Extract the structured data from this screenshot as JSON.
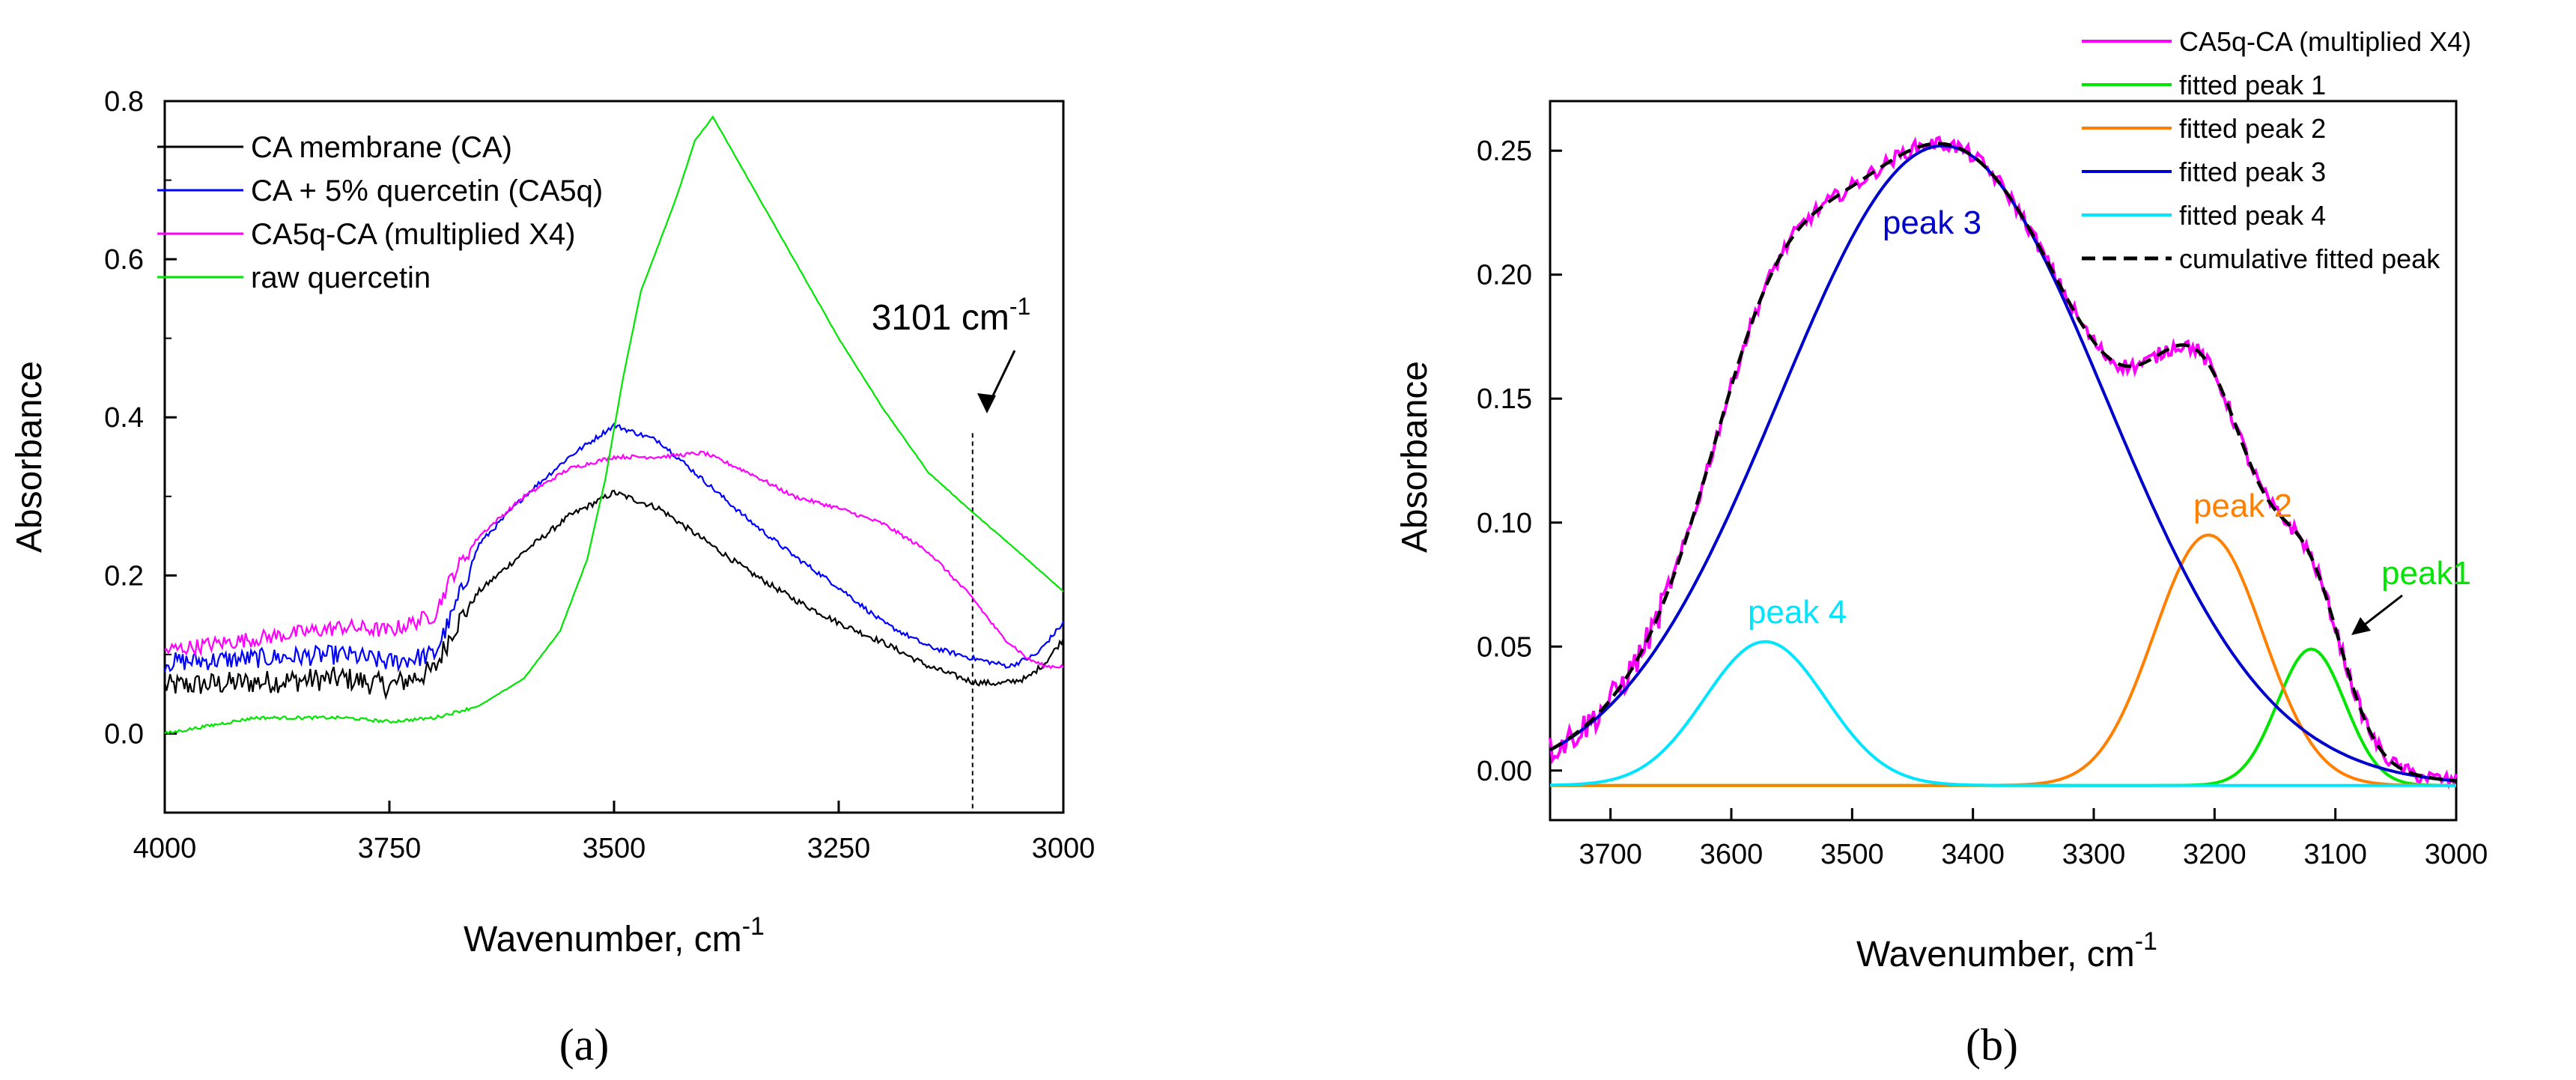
{
  "colors": {
    "black": "#000000",
    "blue": "#0000ff",
    "magenta": "#ff00ff",
    "green": "#00e600",
    "orange": "#ff8000",
    "navy": "#0000cc",
    "cyan": "#00e5ff"
  },
  "chart_data": [
    {
      "panel": "a",
      "caption": "(a)",
      "type": "line",
      "xlabel": "Wavenumber, cm",
      "xlabel_sup": "-1",
      "ylabel": "Absorbance",
      "xlim": [
        4000,
        3000
      ],
      "ylim": [
        -0.1,
        0.8
      ],
      "xticks": [
        4000,
        3750,
        3500,
        3250,
        3000
      ],
      "xtick_labels": [
        "4000",
        "3750",
        "3500",
        "3250",
        "3000"
      ],
      "yticks": [
        0.0,
        0.2,
        0.4,
        0.6,
        0.8
      ],
      "ytick_labels": [
        "0.0",
        "0.2",
        "0.4",
        "0.6",
        "0.8"
      ],
      "annotation": {
        "text": "3101 cm",
        "sup": "-1",
        "x": 3101
      },
      "legend": [
        "CA membrane (CA)",
        "CA + 5% quercetin (CA5q)",
        "CA5q-CA  (multiplied X4)",
        "raw quercetin"
      ],
      "series": [
        {
          "name": "CA membrane (CA)",
          "color": "#000000",
          "x": [
            4000,
            3900,
            3800,
            3750,
            3700,
            3680,
            3650,
            3600,
            3550,
            3500,
            3450,
            3400,
            3350,
            3300,
            3250,
            3200,
            3150,
            3100,
            3070,
            3040,
            3020,
            3000
          ],
          "y": [
            0.06,
            0.065,
            0.07,
            0.06,
            0.08,
            0.13,
            0.18,
            0.23,
            0.275,
            0.305,
            0.285,
            0.245,
            0.205,
            0.17,
            0.14,
            0.115,
            0.085,
            0.065,
            0.063,
            0.07,
            0.09,
            0.12
          ]
        },
        {
          "name": "CA + 5% quercetin (CA5q)",
          "color": "#0000ff",
          "x": [
            4000,
            3900,
            3800,
            3750,
            3700,
            3680,
            3650,
            3600,
            3550,
            3500,
            3450,
            3400,
            3350,
            3300,
            3250,
            3200,
            3150,
            3100,
            3060,
            3030,
            3000
          ],
          "y": [
            0.09,
            0.095,
            0.1,
            0.09,
            0.1,
            0.15,
            0.24,
            0.3,
            0.35,
            0.39,
            0.37,
            0.32,
            0.27,
            0.225,
            0.185,
            0.14,
            0.11,
            0.095,
            0.085,
            0.1,
            0.14
          ]
        },
        {
          "name": "CA5q-CA  (multiplied X4)",
          "color": "#ff00ff",
          "x": [
            4000,
            3900,
            3800,
            3750,
            3700,
            3680,
            3650,
            3600,
            3550,
            3500,
            3450,
            3400,
            3350,
            3300,
            3250,
            3200,
            3150,
            3100,
            3070,
            3040,
            3020,
            3000
          ],
          "y": [
            0.105,
            0.12,
            0.135,
            0.13,
            0.15,
            0.2,
            0.25,
            0.3,
            0.335,
            0.35,
            0.35,
            0.355,
            0.33,
            0.3,
            0.285,
            0.265,
            0.23,
            0.17,
            0.125,
            0.095,
            0.085,
            0.085
          ]
        },
        {
          "name": "raw quercetin",
          "color": "#00e600",
          "x": [
            4000,
            3900,
            3800,
            3750,
            3700,
            3650,
            3600,
            3560,
            3530,
            3510,
            3490,
            3470,
            3450,
            3430,
            3410,
            3390,
            3370,
            3350,
            3300,
            3250,
            3200,
            3150,
            3101,
            3050,
            3000
          ],
          "y": [
            0.0,
            0.02,
            0.02,
            0.015,
            0.02,
            0.035,
            0.07,
            0.13,
            0.22,
            0.32,
            0.45,
            0.56,
            0.62,
            0.68,
            0.75,
            0.78,
            0.74,
            0.7,
            0.6,
            0.5,
            0.41,
            0.33,
            0.28,
            0.23,
            0.18
          ]
        }
      ]
    },
    {
      "panel": "b",
      "caption": "(b)",
      "type": "line",
      "xlabel": "Wavenumber, cm",
      "xlabel_sup": "-1",
      "ylabel": "Absorbance",
      "xlim": [
        3750,
        3000
      ],
      "ylim": [
        -0.02,
        0.27
      ],
      "xticks": [
        3700,
        3600,
        3500,
        3400,
        3300,
        3200,
        3100,
        3000
      ],
      "xtick_labels": [
        "3700",
        "3600",
        "3500",
        "3400",
        "3300",
        "3200",
        "3100",
        "3000"
      ],
      "yticks": [
        0.0,
        0.05,
        0.1,
        0.15,
        0.2,
        0.25
      ],
      "ytick_labels": [
        "0.00",
        "0.05",
        "0.10",
        "0.15",
        "0.20",
        "0.25"
      ],
      "peak_labels": [
        "peak 3",
        "peak 2",
        "peak1",
        "peak 4"
      ],
      "legend": [
        "CA5q-CA (multiplied X4)",
        "fitted peak 1",
        "fitted peak 2",
        "fitted peak 3",
        "fitted peak 4",
        "cumulative fitted peak"
      ],
      "baseline": -0.006,
      "peaks": [
        {
          "name": "fitted peak 1",
          "color": "#00e600",
          "center": 3120,
          "height": 0.055,
          "sigma": 28
        },
        {
          "name": "fitted peak 2",
          "color": "#ff8000",
          "center": 3205,
          "height": 0.101,
          "sigma": 45
        },
        {
          "name": "fitted peak 3",
          "color": "#0000cc",
          "center": 3425,
          "height": 0.258,
          "sigma": 135
        },
        {
          "name": "fitted peak 4",
          "color": "#00e5ff",
          "center": 3572,
          "height": 0.058,
          "sigma": 50
        }
      ],
      "series": [
        {
          "name": "CA5q-CA (multiplied X4)",
          "color": "#ff00ff",
          "x": [
            3750,
            3700,
            3650,
            3600,
            3550,
            3500,
            3450,
            3400,
            3350,
            3300,
            3250,
            3200,
            3150,
            3100,
            3050,
            3000
          ],
          "y": [
            0.008,
            0.04,
            0.1,
            0.185,
            0.23,
            0.245,
            0.252,
            0.25,
            0.22,
            0.19,
            0.18,
            0.165,
            0.13,
            0.06,
            0.015,
            0.0
          ]
        }
      ]
    }
  ]
}
